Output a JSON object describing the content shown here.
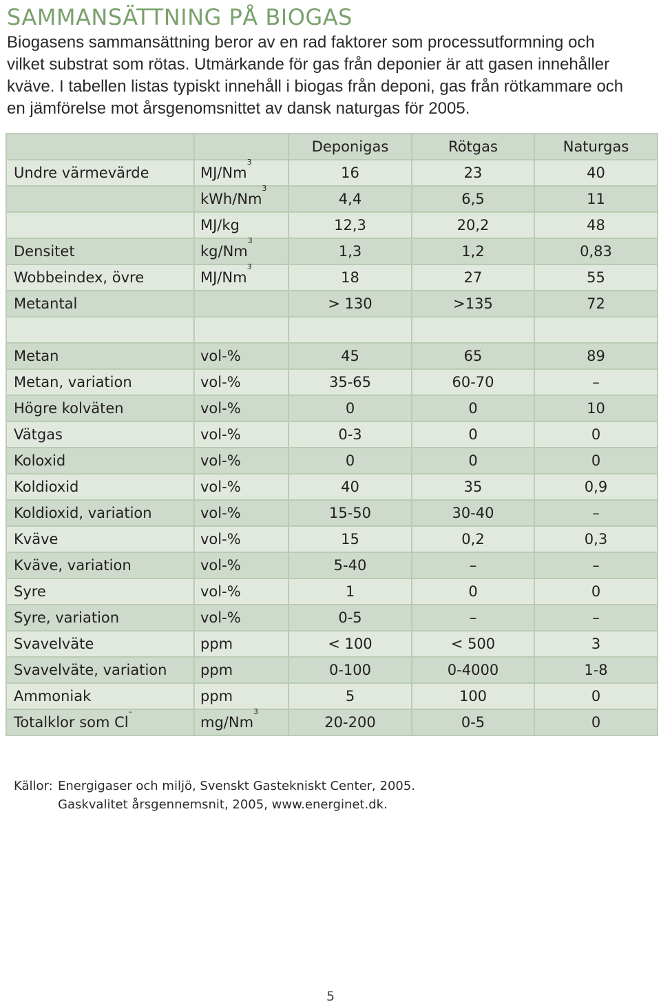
{
  "title": "SAMMANSÄTTNING PÅ BIOGAS",
  "intro": "Biogasens sammansättning beror av en rad faktorer som processutformning och\nvilket substrat som rötas. Utmärkande för gas från deponier är att gasen innehåller\nkväve. I tabellen listas typiskt innehåll i biogas från deponi, gas från rötkammare och\nen jämförelse mot årsgenomsnittet av dansk naturgas för 2005.",
  "table": {
    "headers": [
      "",
      "",
      "Deponigas",
      "Rötgas",
      "Naturgas"
    ],
    "rows": [
      {
        "label": "Undre värmevärde",
        "unit": "MJ/Nm",
        "sup": "3",
        "deponigas": "16",
        "rotgas": "23",
        "naturgas": "40"
      },
      {
        "label": "",
        "unit": "kWh/Nm",
        "sup": "3",
        "deponigas": "4,4",
        "rotgas": "6,5",
        "naturgas": "11"
      },
      {
        "label": "",
        "unit": "MJ/kg",
        "sup": "",
        "deponigas": "12,3",
        "rotgas": "20,2",
        "naturgas": "48"
      },
      {
        "label": "Densitet",
        "unit": "kg/Nm",
        "sup": "3",
        "deponigas": "1,3",
        "rotgas": "1,2",
        "naturgas": "0,83"
      },
      {
        "label": "Wobbeindex, övre",
        "unit": "MJ/Nm",
        "sup": "3",
        "deponigas": "18",
        "rotgas": "27",
        "naturgas": "55"
      },
      {
        "label": "Metantal",
        "unit": "",
        "sup": "",
        "deponigas": "> 130",
        "rotgas": ">135",
        "naturgas": "72"
      },
      {
        "label": "",
        "unit": "",
        "sup": "",
        "deponigas": "",
        "rotgas": "",
        "naturgas": ""
      },
      {
        "label": "Metan",
        "unit": "vol-%",
        "sup": "",
        "deponigas": "45",
        "rotgas": "65",
        "naturgas": "89"
      },
      {
        "label": "Metan, variation",
        "unit": "vol-%",
        "sup": "",
        "deponigas": "35-65",
        "rotgas": "60-70",
        "naturgas": "–"
      },
      {
        "label": "Högre kolväten",
        "unit": "vol-%",
        "sup": "",
        "deponigas": "0",
        "rotgas": "0",
        "naturgas": "10"
      },
      {
        "label": "Vätgas",
        "unit": "vol-%",
        "sup": "",
        "deponigas": "0-3",
        "rotgas": "0",
        "naturgas": "0"
      },
      {
        "label": "Koloxid",
        "unit": "vol-%",
        "sup": "",
        "deponigas": "0",
        "rotgas": "0",
        "naturgas": "0"
      },
      {
        "label": "Koldioxid",
        "unit": "vol-%",
        "sup": "",
        "deponigas": "40",
        "rotgas": "35",
        "naturgas": "0,9"
      },
      {
        "label": "Koldioxid, variation",
        "unit": "vol-%",
        "sup": "",
        "deponigas": "15-50",
        "rotgas": "30-40",
        "naturgas": "–"
      },
      {
        "label": "Kväve",
        "unit": "vol-%",
        "sup": "",
        "deponigas": "15",
        "rotgas": "0,2",
        "naturgas": "0,3"
      },
      {
        "label": "Kväve, variation",
        "unit": "vol-%",
        "sup": "",
        "deponigas": "5-40",
        "rotgas": "–",
        "naturgas": "–"
      },
      {
        "label": "Syre",
        "unit": "vol-%",
        "sup": "",
        "deponigas": "1",
        "rotgas": "0",
        "naturgas": "0"
      },
      {
        "label": "Syre, variation",
        "unit": "vol-%",
        "sup": "",
        "deponigas": "0-5",
        "rotgas": "–",
        "naturgas": "–"
      },
      {
        "label": "Svavelväte",
        "unit": "ppm",
        "sup": "",
        "deponigas": "< 100",
        "rotgas": "< 500",
        "naturgas": "3"
      },
      {
        "label": "Svavelväte, variation",
        "unit": "ppm",
        "sup": "",
        "deponigas": "0-100",
        "rotgas": "0-4000",
        "naturgas": "1-8"
      },
      {
        "label": "Ammoniak",
        "unit": "ppm",
        "sup": "",
        "deponigas": "5",
        "rotgas": "100",
        "naturgas": "0"
      },
      {
        "label": "Totalklor som Cl",
        "label_sup": "–",
        "unit": "mg/Nm",
        "sup": "3",
        "deponigas": "20-200",
        "rotgas": "0-5",
        "naturgas": "0"
      }
    ]
  },
  "sources": {
    "label": "Källor:",
    "lines": [
      "Energigaser och miljö, Svenskt Gastekniskt Center, 2005.",
      "Gaskvalitet årsgennemsnit, 2005, www.energinet.dk."
    ]
  },
  "page_number": "5",
  "colors": {
    "title": "#7aa16d",
    "row_dark": "#cedacb",
    "row_light": "#e1e9df",
    "border": "#b9ccb4"
  }
}
